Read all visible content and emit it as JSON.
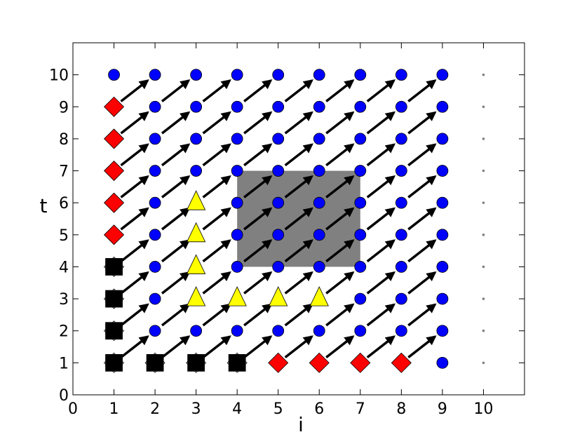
{
  "chart_data": {
    "type": "scatter",
    "x_label": "i",
    "y_label": "t",
    "xlim": [
      0,
      11
    ],
    "ylim": [
      0,
      11
    ],
    "xticks": [
      0,
      1,
      2,
      3,
      4,
      5,
      6,
      7,
      8,
      9,
      10
    ],
    "yticks": [
      0,
      1,
      2,
      3,
      4,
      5,
      6,
      7,
      8,
      9,
      10
    ],
    "region": {
      "x": [
        4,
        7
      ],
      "y": [
        4,
        7
      ],
      "color": "#808080"
    },
    "arrow_step": [
      1,
      1
    ],
    "series": [
      {
        "marker": "circle",
        "color": "#0000ff",
        "x": [
          9,
          2,
          3,
          4,
          5,
          6,
          7,
          8,
          9,
          2,
          7,
          8,
          9,
          2,
          4,
          5,
          6,
          7,
          8,
          9,
          2,
          4,
          5,
          6,
          7,
          8,
          9,
          2,
          4,
          5,
          6,
          7,
          8,
          9,
          2,
          3,
          4,
          5,
          6,
          7,
          8,
          9,
          2,
          3,
          4,
          5,
          6,
          7,
          8,
          9,
          2,
          3,
          4,
          5,
          6,
          7,
          8,
          9,
          1,
          2,
          3,
          4,
          5,
          6,
          7,
          8,
          9
        ],
        "values": [
          1,
          2,
          2,
          2,
          2,
          2,
          2,
          2,
          2,
          3,
          3,
          3,
          3,
          4,
          4,
          4,
          4,
          4,
          4,
          4,
          5,
          5,
          5,
          5,
          5,
          5,
          5,
          6,
          6,
          6,
          6,
          6,
          6,
          6,
          7,
          7,
          7,
          7,
          7,
          7,
          7,
          7,
          8,
          8,
          8,
          8,
          8,
          8,
          8,
          8,
          9,
          9,
          9,
          9,
          9,
          9,
          9,
          9,
          10,
          10,
          10,
          10,
          10,
          10,
          10,
          10,
          10
        ]
      },
      {
        "marker": "diamond",
        "color": "#ff0000",
        "x": [
          1,
          1,
          1,
          1,
          1,
          5,
          6,
          7,
          8
        ],
        "values": [
          5,
          6,
          7,
          8,
          9,
          1,
          1,
          1,
          1
        ]
      },
      {
        "marker": "square",
        "color": "#000000",
        "x": [
          1,
          1,
          1,
          1,
          2,
          3,
          4
        ],
        "values": [
          1,
          2,
          3,
          4,
          1,
          1,
          1
        ]
      },
      {
        "marker": "triangle",
        "color": "#ffff00",
        "x": [
          3,
          3,
          3,
          3,
          4,
          5,
          6
        ],
        "values": [
          3,
          4,
          5,
          6,
          3,
          3,
          3
        ]
      },
      {
        "marker": "dot",
        "color": "#808080",
        "x": [
          10,
          10,
          10,
          10,
          10,
          10,
          10,
          10,
          10,
          10
        ],
        "values": [
          1,
          2,
          3,
          4,
          5,
          6,
          7,
          8,
          9,
          10
        ]
      }
    ]
  }
}
